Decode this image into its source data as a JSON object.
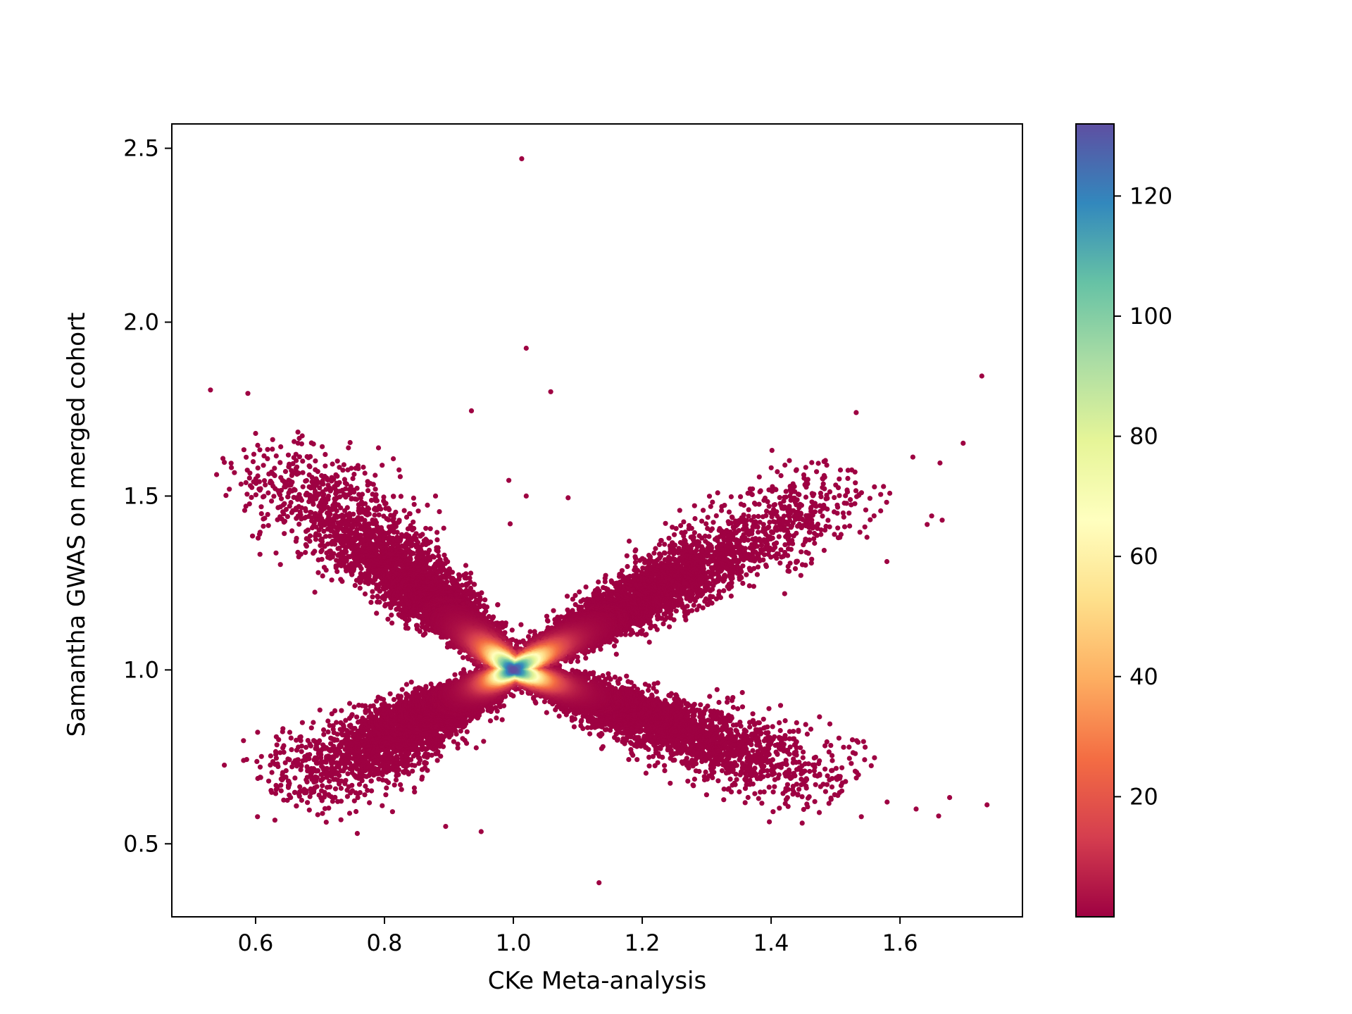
{
  "chart_data": {
    "type": "scatter",
    "subtype": "density-colored scatter",
    "title": "",
    "xlabel": "CKe Meta-analysis",
    "ylabel": "Samantha GWAS on merged cohort",
    "xlim": [
      0.47,
      1.79
    ],
    "ylim": [
      0.29,
      2.57
    ],
    "xticks": [
      0.6,
      0.8,
      1.0,
      1.2,
      1.4,
      1.6
    ],
    "xtick_labels": [
      "0.6",
      "0.8",
      "1.0",
      "1.2",
      "1.4",
      "1.6"
    ],
    "yticks": [
      0.5,
      1.0,
      1.5,
      2.0,
      2.5
    ],
    "ytick_labels": [
      "0.5",
      "1.0",
      "1.5",
      "2.0",
      "2.5"
    ],
    "grid": false,
    "colormap": "Spectral",
    "colorbar": {
      "range": [
        0,
        132
      ],
      "ticks": [
        20,
        40,
        60,
        80,
        100,
        120
      ],
      "tick_labels": [
        "20",
        "40",
        "60",
        "80",
        "100",
        "120"
      ],
      "stops": [
        "#9e0142",
        "#d53e4f",
        "#f46d43",
        "#fdae61",
        "#fee08b",
        "#ffffbf",
        "#e6f598",
        "#abdda4",
        "#66c2a5",
        "#3288bd",
        "#5e4fa2"
      ]
    },
    "structure": {
      "center": [
        1.0,
        1.0
      ],
      "center_density": 132,
      "arms": [
        {
          "direction": "upper-left",
          "end": [
            0.63,
            1.6
          ],
          "end_spread": 0.05
        },
        {
          "direction": "lower-right",
          "end": [
            1.48,
            0.68
          ],
          "end_spread": 0.05
        },
        {
          "direction": "upper-right",
          "end": [
            1.5,
            1.52
          ],
          "end_spread": 0.05
        },
        {
          "direction": "lower-left",
          "end": [
            0.66,
            0.66
          ],
          "end_spread": 0.05
        }
      ]
    },
    "outliers": [
      {
        "x": 1.013,
        "y": 2.47
      },
      {
        "x": 1.02,
        "y": 1.925
      },
      {
        "x": 0.53,
        "y": 1.805
      },
      {
        "x": 0.588,
        "y": 1.795
      },
      {
        "x": 1.058,
        "y": 1.8
      },
      {
        "x": 1.727,
        "y": 1.845
      },
      {
        "x": 0.935,
        "y": 1.745
      },
      {
        "x": 1.532,
        "y": 1.74
      },
      {
        "x": 0.6,
        "y": 1.68
      },
      {
        "x": 1.698,
        "y": 1.652
      },
      {
        "x": 1.662,
        "y": 1.595
      },
      {
        "x": 1.62,
        "y": 1.612
      },
      {
        "x": 0.993,
        "y": 1.545
      },
      {
        "x": 1.085,
        "y": 1.495
      },
      {
        "x": 1.02,
        "y": 1.5
      },
      {
        "x": 0.995,
        "y": 1.42
      },
      {
        "x": 0.603,
        "y": 0.578
      },
      {
        "x": 0.63,
        "y": 0.568
      },
      {
        "x": 0.895,
        "y": 0.55
      },
      {
        "x": 0.95,
        "y": 0.535
      },
      {
        "x": 1.133,
        "y": 0.388
      },
      {
        "x": 1.735,
        "y": 0.612
      },
      {
        "x": 1.677,
        "y": 0.633
      },
      {
        "x": 1.66,
        "y": 0.58
      },
      {
        "x": 1.625,
        "y": 0.6
      },
      {
        "x": 1.58,
        "y": 0.62
      },
      {
        "x": 1.54,
        "y": 0.578
      }
    ]
  }
}
